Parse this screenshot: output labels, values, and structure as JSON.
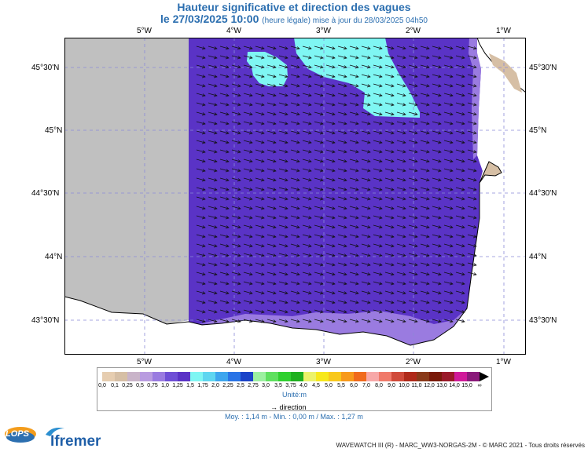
{
  "title": "Hauteur significative et direction des vagues",
  "subtitle_date": "le 27/03/2025 10:00",
  "subtitle_note": "(heure légale) mise à jour du 28/03/2025 04h50",
  "lon_labels": [
    "5°W",
    "4°W",
    "3°W",
    "2°W",
    "1°W"
  ],
  "lat_labels": [
    "45°30'N",
    "45°N",
    "44°30'N",
    "44°N",
    "43°30'N"
  ],
  "legend": {
    "ticks": [
      "0,0",
      "0,1",
      "0,25",
      "0,5",
      "0,75",
      "1,0",
      "1,25",
      "1,5",
      "1,75",
      "2,0",
      "2,25",
      "2,5",
      "2,75",
      "3,0",
      "3,5",
      "3,75",
      "4,0",
      "4,5",
      "5,0",
      "5,5",
      "6,0",
      "7,0",
      "8,0",
      "9,0",
      "10,0",
      "11,0",
      "12,0",
      "13,0",
      "14,0",
      "15,0",
      "∞"
    ],
    "colors": [
      "#e6cdb0",
      "#d6bfa5",
      "#c9b4c9",
      "#b99ce0",
      "#9a7be0",
      "#6f4fd6",
      "#5a33c6",
      "#7ff6f3",
      "#5fd6f0",
      "#3ea6ee",
      "#2a74e6",
      "#1a43c8",
      "#9cf0a0",
      "#5fe05f",
      "#2fd02f",
      "#1fb01f",
      "#ecf26a",
      "#f7e81c",
      "#f8c81c",
      "#f79a1c",
      "#f06a1c",
      "#f7a8a8",
      "#f07a6a",
      "#d04a3a",
      "#b02a1a",
      "#8a3a1a",
      "#7a1a0a",
      "#9a1a2a",
      "#d01a9a",
      "#8a1a7a"
    ],
    "unit": "Unité:m",
    "direction": "direction"
  },
  "stats": "Moy. : 1,14 m   -   Min. : 0,00 m / Max. : 1,27 m",
  "footer": "WAVEWATCH III (R) - MARC_WW3-NORGAS-2M - © MARC 2021 - Tous droits réservés",
  "logos": {
    "lops": "LOPS",
    "ifremer": "Ifremer"
  },
  "colors": {
    "sea": "#5a33c6",
    "no_data": "#c0c0c0",
    "high": "#7ff6f3",
    "land": "#ffffff",
    "coast_low": "#9a7be0"
  }
}
